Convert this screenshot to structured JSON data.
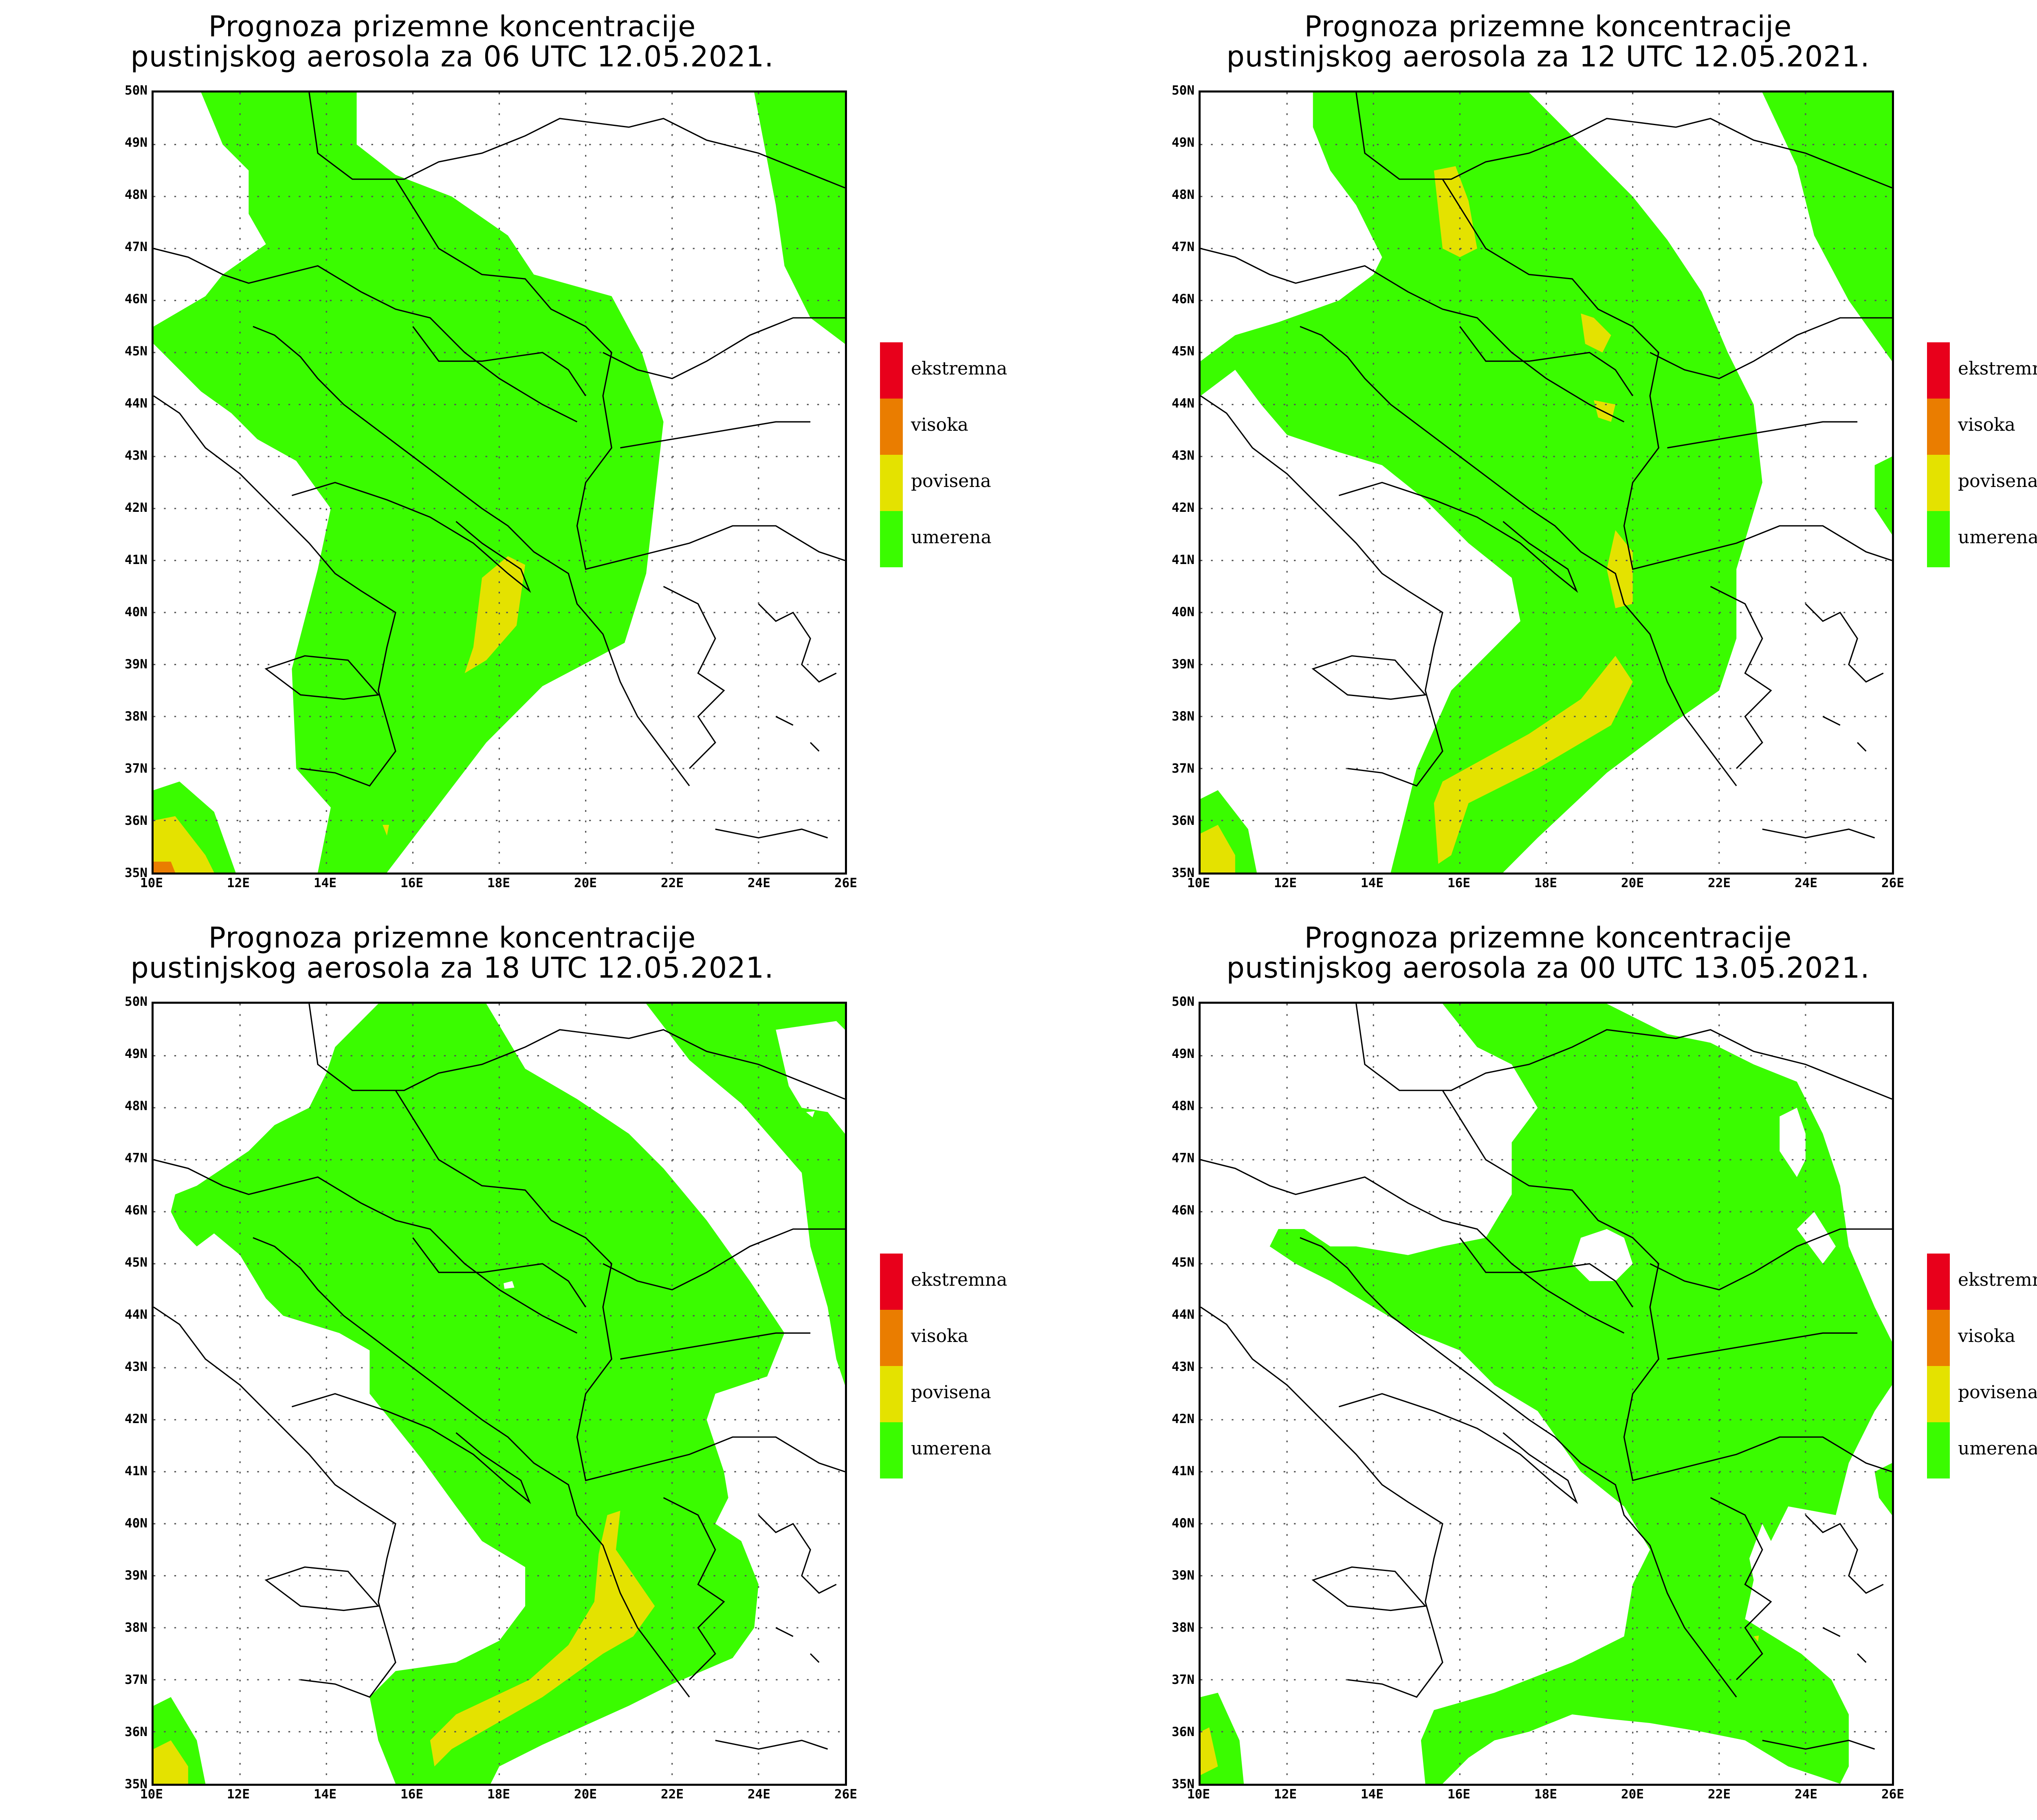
{
  "legend": {
    "items": [
      {
        "label": "ekstremna",
        "color": "#e8001b"
      },
      {
        "label": "visoka",
        "color": "#ea7d00"
      },
      {
        "label": "povisena",
        "color": "#e4e200"
      },
      {
        "label": "umerena",
        "color": "#3afc00"
      }
    ]
  },
  "axes": {
    "lon_labels": [
      "10E",
      "12E",
      "14E",
      "16E",
      "18E",
      "20E",
      "22E",
      "24E",
      "26E"
    ],
    "lat_labels": [
      "50N",
      "49N",
      "48N",
      "47N",
      "46N",
      "45N",
      "44N",
      "43N",
      "42N",
      "41N",
      "40N",
      "39N",
      "38N",
      "37N",
      "36N",
      "35N"
    ],
    "lon_range": [
      10,
      26
    ],
    "lat_range": [
      35,
      50
    ]
  },
  "panels": [
    {
      "title_line1": "Prognoza prizemne koncentracije",
      "title_line2": "pustinjskog aerosola za 06 UTC 12.05.2021."
    },
    {
      "title_line1": "Prognoza prizemne koncentracije",
      "title_line2": "pustinjskog aerosola za 12 UTC 12.05.2021."
    },
    {
      "title_line1": "Prognoza prizemne koncentracije",
      "title_line2": "pustinjskog aerosola za 18 UTC 12.05.2021."
    },
    {
      "title_line1": "Prognoza prizemne koncentracije",
      "title_line2": "pustinjskog aerosola za 00 UTC 13.05.2021."
    }
  ]
}
